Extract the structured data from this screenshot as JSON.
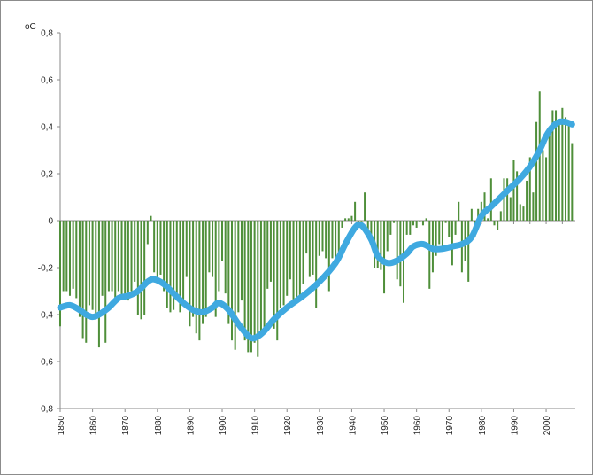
{
  "chart_data": {
    "type": "bar",
    "ylabel": "oC",
    "ylim": [
      -0.8,
      0.8
    ],
    "yticks": [
      "0,8",
      "0,6",
      "0,4",
      "0,2",
      "0",
      "-0,2",
      "-0,4",
      "-0,6",
      "-0,8"
    ],
    "ytick_values": [
      0.8,
      0.6,
      0.4,
      0.2,
      0,
      -0.2,
      -0.4,
      -0.6,
      -0.8
    ],
    "xticks": [
      "1850",
      "1860",
      "1870",
      "1880",
      "1890",
      "1900",
      "1910",
      "1920",
      "1930",
      "1940",
      "1950",
      "1960",
      "1970",
      "1980",
      "1990",
      "2000"
    ],
    "xtick_values": [
      1850,
      1860,
      1870,
      1880,
      1890,
      1900,
      1910,
      1920,
      1930,
      1940,
      1950,
      1960,
      1970,
      1980,
      1990,
      2000
    ],
    "xlim": [
      1850,
      2009
    ],
    "colors": {
      "bars": "#4f8f3a",
      "smooth": "#3fa9e0"
    },
    "grid": false,
    "series": [
      {
        "type": "bar",
        "years": [
          1850,
          1851,
          1852,
          1853,
          1854,
          1855,
          1856,
          1857,
          1858,
          1859,
          1860,
          1861,
          1862,
          1863,
          1864,
          1865,
          1866,
          1867,
          1868,
          1869,
          1870,
          1871,
          1872,
          1873,
          1874,
          1875,
          1876,
          1877,
          1878,
          1879,
          1880,
          1881,
          1882,
          1883,
          1884,
          1885,
          1886,
          1887,
          1888,
          1889,
          1890,
          1891,
          1892,
          1893,
          1894,
          1895,
          1896,
          1897,
          1898,
          1899,
          1900,
          1901,
          1902,
          1903,
          1904,
          1905,
          1906,
          1907,
          1908,
          1909,
          1910,
          1911,
          1912,
          1913,
          1914,
          1915,
          1916,
          1917,
          1918,
          1919,
          1920,
          1921,
          1922,
          1923,
          1924,
          1925,
          1926,
          1927,
          1928,
          1929,
          1930,
          1931,
          1932,
          1933,
          1934,
          1935,
          1936,
          1937,
          1938,
          1939,
          1940,
          1941,
          1942,
          1943,
          1944,
          1945,
          1946,
          1947,
          1948,
          1949,
          1950,
          1951,
          1952,
          1953,
          1954,
          1955,
          1956,
          1957,
          1958,
          1959,
          1960,
          1961,
          1962,
          1963,
          1964,
          1965,
          1966,
          1967,
          1968,
          1969,
          1970,
          1971,
          1972,
          1973,
          1974,
          1975,
          1976,
          1977,
          1978,
          1979,
          1980,
          1981,
          1982,
          1983,
          1984,
          1985,
          1986,
          1987,
          1988,
          1989,
          1990,
          1991,
          1992,
          1993,
          1994,
          1995,
          1996,
          1997,
          1998,
          1999,
          2000,
          2001,
          2002,
          2003,
          2004,
          2005,
          2006,
          2007,
          2008
        ],
        "values": [
          -0.45,
          -0.3,
          -0.3,
          -0.32,
          -0.29,
          -0.33,
          -0.41,
          -0.5,
          -0.52,
          -0.36,
          -0.38,
          -0.41,
          -0.54,
          -0.32,
          -0.52,
          -0.3,
          -0.3,
          -0.33,
          -0.3,
          -0.33,
          -0.33,
          -0.34,
          -0.3,
          -0.26,
          -0.4,
          -0.42,
          -0.4,
          -0.1,
          0.02,
          -0.22,
          -0.26,
          -0.23,
          -0.3,
          -0.37,
          -0.39,
          -0.38,
          -0.34,
          -0.39,
          -0.35,
          -0.24,
          -0.45,
          -0.41,
          -0.48,
          -0.51,
          -0.44,
          -0.41,
          -0.22,
          -0.24,
          -0.41,
          -0.3,
          -0.17,
          -0.31,
          -0.44,
          -0.51,
          -0.55,
          -0.39,
          -0.34,
          -0.51,
          -0.56,
          -0.56,
          -0.52,
          -0.58,
          -0.49,
          -0.48,
          -0.29,
          -0.26,
          -0.46,
          -0.51,
          -0.37,
          -0.36,
          -0.32,
          -0.25,
          -0.36,
          -0.33,
          -0.34,
          -0.27,
          -0.14,
          -0.24,
          -0.23,
          -0.37,
          -0.15,
          -0.13,
          -0.16,
          -0.3,
          -0.16,
          -0.19,
          -0.15,
          -0.03,
          0.01,
          0.01,
          0.02,
          0.08,
          -0.03,
          0.0,
          0.12,
          -0.06,
          -0.08,
          -0.2,
          -0.2,
          -0.21,
          -0.31,
          -0.13,
          -0.06,
          -0.01,
          -0.25,
          -0.28,
          -0.35,
          -0.06,
          -0.06,
          -0.02,
          -0.03,
          0.0,
          -0.02,
          0.01,
          -0.29,
          -0.22,
          -0.15,
          -0.1,
          -0.13,
          -0.01,
          -0.07,
          -0.19,
          -0.06,
          0.08,
          -0.22,
          -0.17,
          -0.26,
          0.05,
          -0.07,
          0.05,
          0.08,
          0.12,
          0.01,
          0.18,
          -0.02,
          -0.04,
          0.04,
          0.18,
          0.18,
          0.1,
          0.26,
          0.21,
          0.07,
          0.06,
          0.17,
          0.27,
          0.12,
          0.42,
          0.55,
          0.3,
          0.27,
          0.4,
          0.47,
          0.47,
          0.43,
          0.48,
          0.44,
          0.42,
          0.33
        ]
      },
      {
        "type": "line",
        "years": [
          1850,
          1853,
          1856,
          1858,
          1860,
          1862,
          1865,
          1868,
          1871,
          1874,
          1877,
          1879,
          1882,
          1885,
          1888,
          1891,
          1894,
          1897,
          1899,
          1902,
          1905,
          1908,
          1910,
          1913,
          1916,
          1920,
          1925,
          1930,
          1935,
          1938,
          1941,
          1943,
          1946,
          1948,
          1951,
          1954,
          1957,
          1959,
          1962,
          1965,
          1968,
          1971,
          1974,
          1977,
          1980,
          1983,
          1986,
          1989,
          1992,
          1995,
          1998,
          2000,
          2002,
          2004,
          2006,
          2008
        ],
        "values": [
          -0.37,
          -0.36,
          -0.38,
          -0.4,
          -0.41,
          -0.4,
          -0.37,
          -0.33,
          -0.32,
          -0.3,
          -0.26,
          -0.25,
          -0.27,
          -0.31,
          -0.35,
          -0.38,
          -0.39,
          -0.37,
          -0.35,
          -0.38,
          -0.44,
          -0.49,
          -0.5,
          -0.47,
          -0.42,
          -0.37,
          -0.32,
          -0.26,
          -0.18,
          -0.1,
          -0.03,
          -0.02,
          -0.08,
          -0.15,
          -0.18,
          -0.17,
          -0.14,
          -0.11,
          -0.1,
          -0.12,
          -0.12,
          -0.11,
          -0.1,
          -0.07,
          0.02,
          0.06,
          0.1,
          0.14,
          0.18,
          0.23,
          0.3,
          0.36,
          0.4,
          0.42,
          0.42,
          0.41
        ]
      }
    ]
  }
}
